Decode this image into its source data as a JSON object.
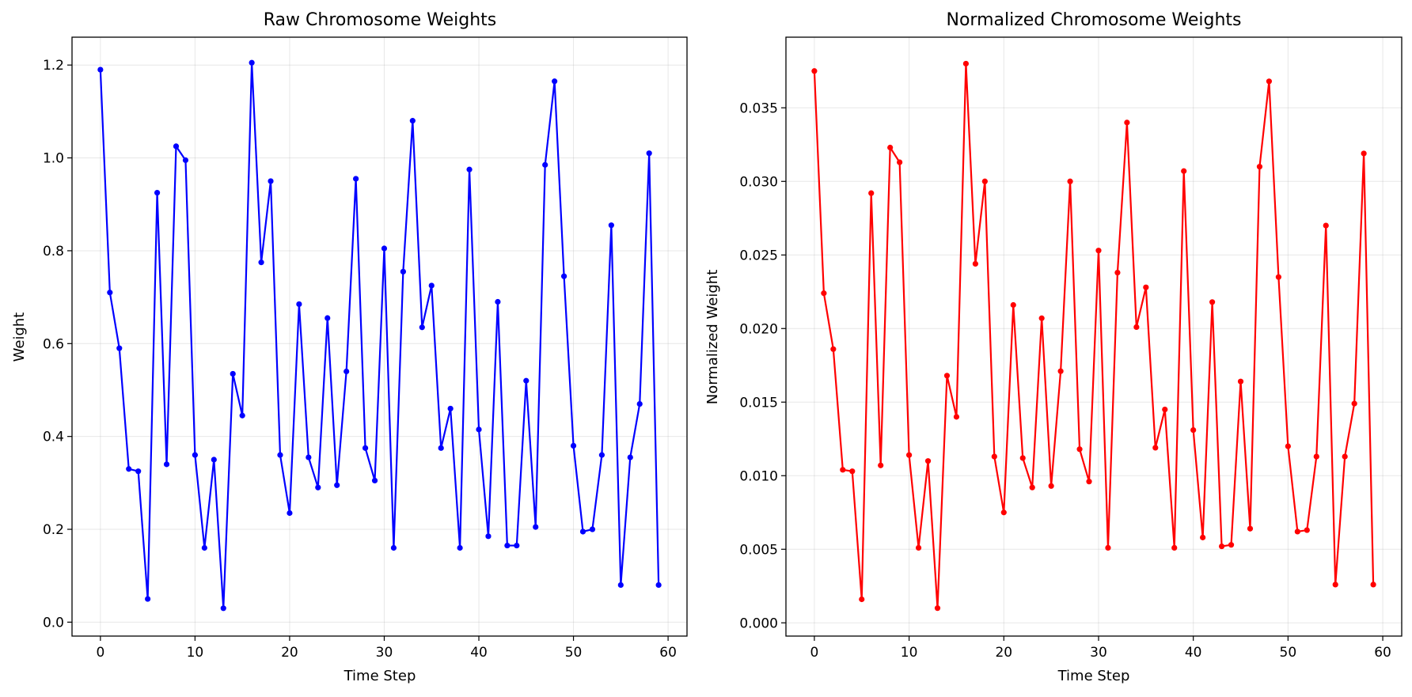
{
  "chart_data": [
    {
      "type": "line",
      "title": "Raw Chromosome Weights",
      "xlabel": "Time Step",
      "ylabel": "Weight",
      "color": "#0000ff",
      "grid": true,
      "xlim": [
        -3,
        62
      ],
      "ylim": [
        -0.03,
        1.26
      ],
      "xticks": [
        "0",
        "10",
        "20",
        "30",
        "40",
        "50",
        "60"
      ],
      "yticks": [
        "0.0",
        "0.2",
        "0.4",
        "0.6",
        "0.8",
        "1.0",
        "1.2"
      ],
      "x": [
        0,
        1,
        2,
        3,
        4,
        5,
        6,
        7,
        8,
        9,
        10,
        11,
        12,
        13,
        14,
        15,
        16,
        17,
        18,
        19,
        20,
        21,
        22,
        23,
        24,
        25,
        26,
        27,
        28,
        29,
        30,
        31,
        32,
        33,
        34,
        35,
        36,
        37,
        38,
        39,
        40,
        41,
        42,
        43,
        44,
        45,
        46,
        47,
        48,
        49,
        50,
        51,
        52,
        53,
        54,
        55,
        56,
        57,
        58,
        59
      ],
      "values": [
        1.19,
        0.71,
        0.59,
        0.33,
        0.325,
        0.05,
        0.925,
        0.34,
        1.025,
        0.995,
        0.36,
        0.16,
        0.35,
        0.03,
        0.535,
        0.445,
        1.205,
        0.775,
        0.95,
        0.36,
        0.235,
        0.685,
        0.355,
        0.29,
        0.655,
        0.295,
        0.54,
        0.955,
        0.375,
        0.305,
        0.805,
        0.16,
        0.755,
        1.08,
        0.635,
        0.725,
        0.375,
        0.46,
        0.16,
        0.975,
        0.415,
        0.185,
        0.69,
        0.165,
        0.165,
        0.52,
        0.205,
        0.985,
        1.165,
        0.745,
        0.38,
        0.195,
        0.2,
        0.36,
        0.855,
        0.08,
        0.355,
        0.47,
        1.01,
        0.08
      ]
    },
    {
      "type": "line",
      "title": "Normalized Chromosome Weights",
      "xlabel": "Time Step",
      "ylabel": "Normalized Weight",
      "color": "#ff0000",
      "grid": true,
      "xlim": [
        -3,
        62
      ],
      "ylim": [
        -0.0009,
        0.0398
      ],
      "xticks": [
        "0",
        "10",
        "20",
        "30",
        "40",
        "50",
        "60"
      ],
      "yticks": [
        "0.000",
        "0.005",
        "0.010",
        "0.015",
        "0.020",
        "0.025",
        "0.030",
        "0.035"
      ],
      "x": [
        0,
        1,
        2,
        3,
        4,
        5,
        6,
        7,
        8,
        9,
        10,
        11,
        12,
        13,
        14,
        15,
        16,
        17,
        18,
        19,
        20,
        21,
        22,
        23,
        24,
        25,
        26,
        27,
        28,
        29,
        30,
        31,
        32,
        33,
        34,
        35,
        36,
        37,
        38,
        39,
        40,
        41,
        42,
        43,
        44,
        45,
        46,
        47,
        48,
        49,
        50,
        51,
        52,
        53,
        54,
        55,
        56,
        57,
        58,
        59
      ],
      "values": [
        0.0375,
        0.0224,
        0.0186,
        0.0104,
        0.0103,
        0.0016,
        0.0292,
        0.0107,
        0.0323,
        0.0313,
        0.0114,
        0.0051,
        0.011,
        0.001,
        0.0168,
        0.014,
        0.038,
        0.0244,
        0.03,
        0.0113,
        0.0075,
        0.0216,
        0.0112,
        0.0092,
        0.0207,
        0.0093,
        0.0171,
        0.03,
        0.0118,
        0.0096,
        0.0253,
        0.0051,
        0.0238,
        0.034,
        0.0201,
        0.0228,
        0.0119,
        0.0145,
        0.0051,
        0.0307,
        0.0131,
        0.0058,
        0.0218,
        0.0052,
        0.0053,
        0.0164,
        0.0064,
        0.031,
        0.0368,
        0.0235,
        0.012,
        0.0062,
        0.0063,
        0.0113,
        0.027,
        0.0026,
        0.0113,
        0.0149,
        0.0319,
        0.0026
      ]
    }
  ]
}
